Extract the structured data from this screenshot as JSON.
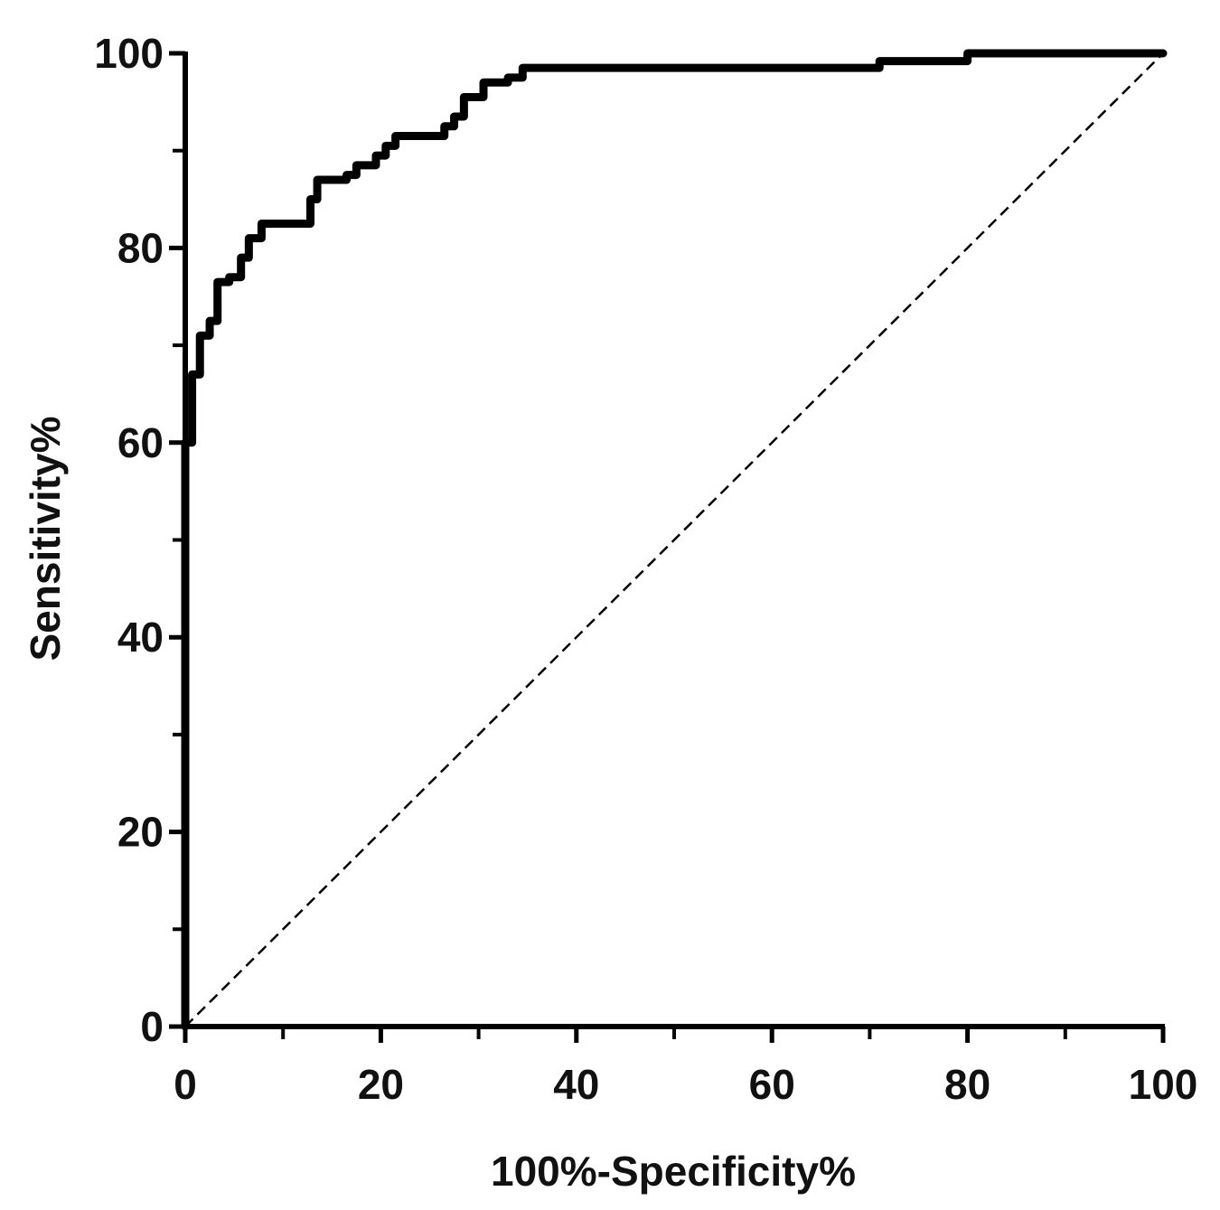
{
  "chart_data": {
    "type": "line",
    "title": "",
    "xlabel": "100%-Specificity%",
    "ylabel": "Sensitivity%",
    "xlim": [
      0,
      100
    ],
    "ylim": [
      0,
      100
    ],
    "grid": false,
    "x_major_ticks": [
      0,
      20,
      40,
      60,
      80,
      100
    ],
    "y_major_ticks": [
      0,
      20,
      40,
      60,
      80,
      100
    ],
    "x_major_tick_labels": [
      "0",
      "20",
      "40",
      "60",
      "80",
      "100"
    ],
    "y_major_tick_labels": [
      "0",
      "20",
      "40",
      "60",
      "80",
      "100"
    ],
    "x_minor_ticks": [
      10,
      30,
      50,
      70,
      90
    ],
    "y_minor_ticks": [
      10,
      30,
      50,
      70,
      90
    ],
    "colors": {
      "curve": "#000000",
      "reference": "#000000",
      "axis": "#000000"
    },
    "series": [
      {
        "style": "solid",
        "points": [
          [
            0,
            0
          ],
          [
            0,
            60
          ],
          [
            0.7,
            60
          ],
          [
            0.7,
            67
          ],
          [
            1.5,
            67
          ],
          [
            1.5,
            71
          ],
          [
            2.5,
            71
          ],
          [
            2.5,
            72.5
          ],
          [
            3.3,
            72.5
          ],
          [
            3.3,
            76.5
          ],
          [
            4.5,
            76.5
          ],
          [
            4.5,
            77
          ],
          [
            5.7,
            77
          ],
          [
            5.7,
            79
          ],
          [
            6.5,
            79
          ],
          [
            6.5,
            81
          ],
          [
            7.8,
            81
          ],
          [
            7.8,
            82.5
          ],
          [
            12.8,
            82.5
          ],
          [
            12.8,
            85
          ],
          [
            13.5,
            85
          ],
          [
            13.5,
            87
          ],
          [
            16.5,
            87
          ],
          [
            16.5,
            87.5
          ],
          [
            17.5,
            87.5
          ],
          [
            17.5,
            88.5
          ],
          [
            19.5,
            88.5
          ],
          [
            19.5,
            89.5
          ],
          [
            20.5,
            89.5
          ],
          [
            20.5,
            90.5
          ],
          [
            21.5,
            90.5
          ],
          [
            21.5,
            91.5
          ],
          [
            26.5,
            91.5
          ],
          [
            26.5,
            92.5
          ],
          [
            27.5,
            92.5
          ],
          [
            27.5,
            93.5
          ],
          [
            28.5,
            93.5
          ],
          [
            28.5,
            95.5
          ],
          [
            30.5,
            95.5
          ],
          [
            30.5,
            97
          ],
          [
            33,
            97
          ],
          [
            33,
            97.5
          ],
          [
            34.5,
            97.5
          ],
          [
            34.5,
            98.5
          ],
          [
            71,
            98.5
          ],
          [
            71,
            99.2
          ],
          [
            80,
            99.2
          ],
          [
            80,
            100
          ],
          [
            100,
            100
          ]
        ]
      },
      {
        "style": "dashed",
        "points": [
          [
            0,
            0
          ],
          [
            100,
            100
          ]
        ]
      }
    ]
  }
}
